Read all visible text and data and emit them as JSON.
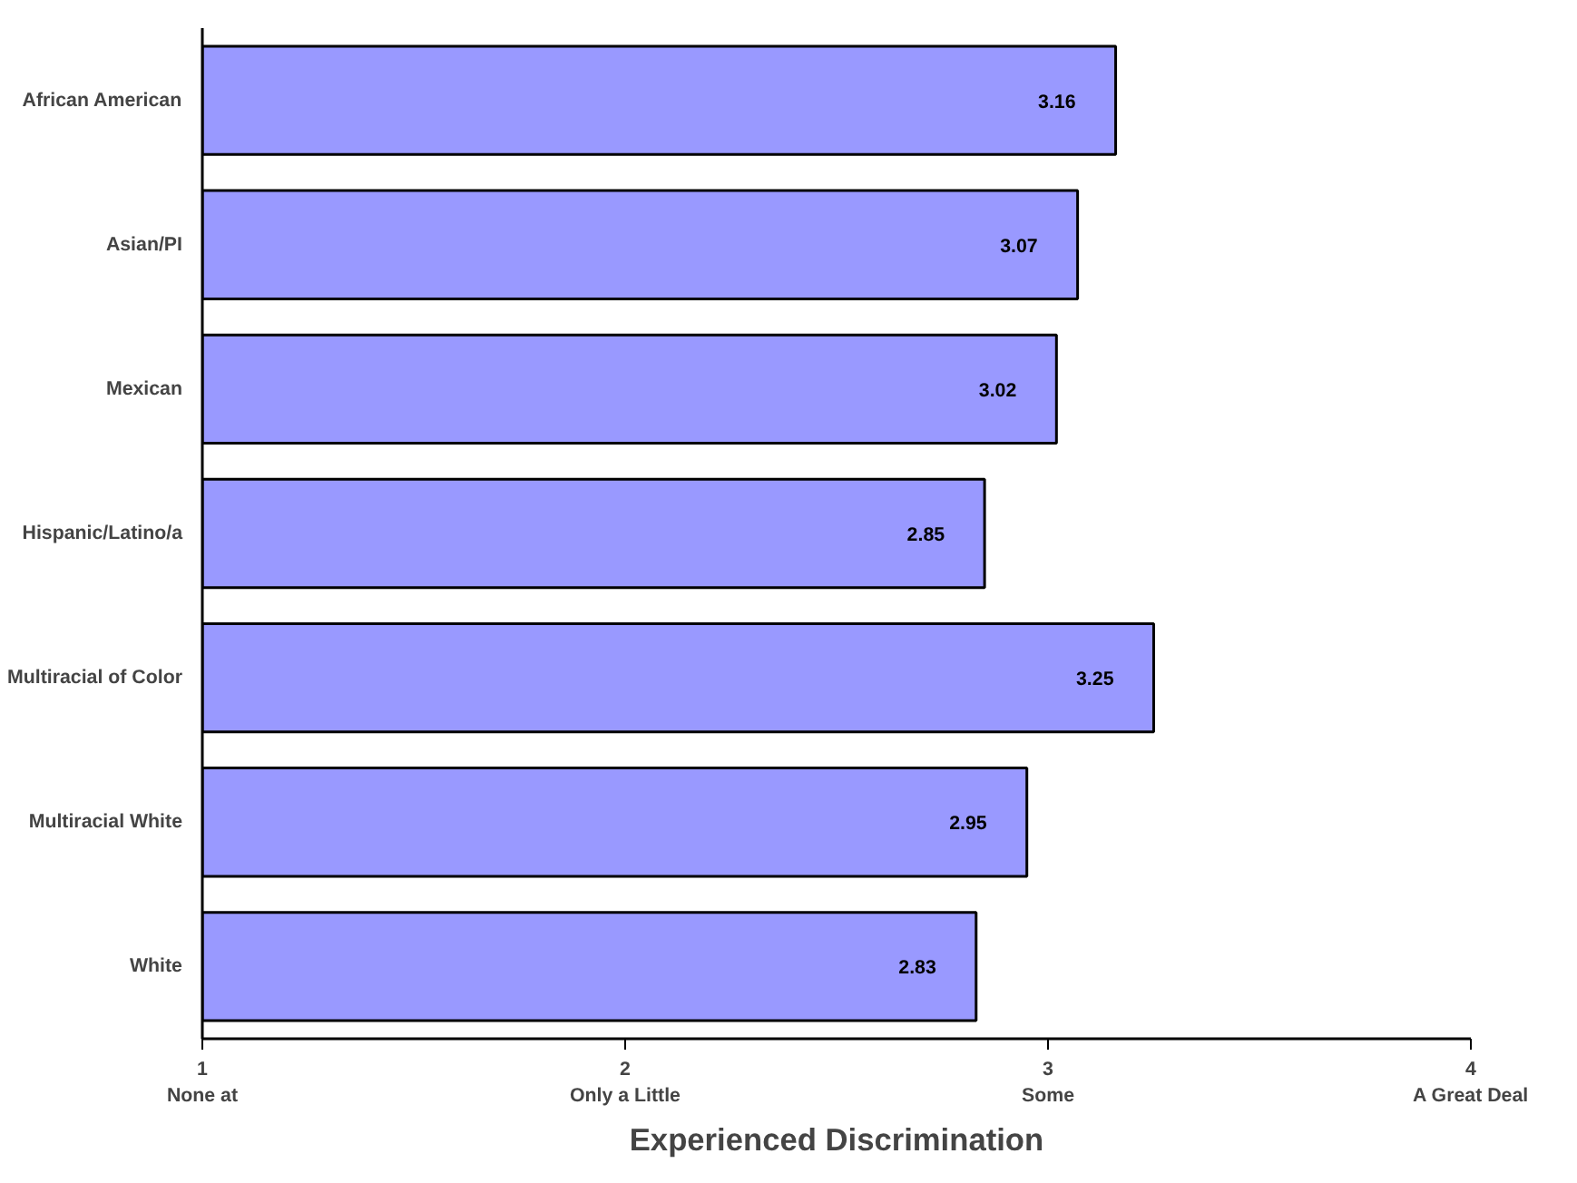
{
  "chart_data": {
    "type": "bar",
    "orientation": "horizontal",
    "xlabel": "Experienced Discrimination",
    "categories": [
      "African American",
      "Asian/PI",
      "Mexican",
      "Hispanic/Latino/a",
      "Multiracial of Color",
      "Multiracial White",
      "White"
    ],
    "values": [
      3.16,
      3.07,
      3.02,
      2.85,
      3.25,
      2.95,
      2.83
    ],
    "color": "#9999ff",
    "data_labels": true,
    "grid": false,
    "xlim": [
      1,
      4
    ],
    "xticks": [
      {
        "value": 1,
        "label": "1\nNone at"
      },
      {
        "value": 2,
        "label": "2\nOnly a Little"
      },
      {
        "value": 3,
        "label": "3\nSome"
      },
      {
        "value": 4,
        "label": "4\nA Great Deal"
      }
    ]
  }
}
